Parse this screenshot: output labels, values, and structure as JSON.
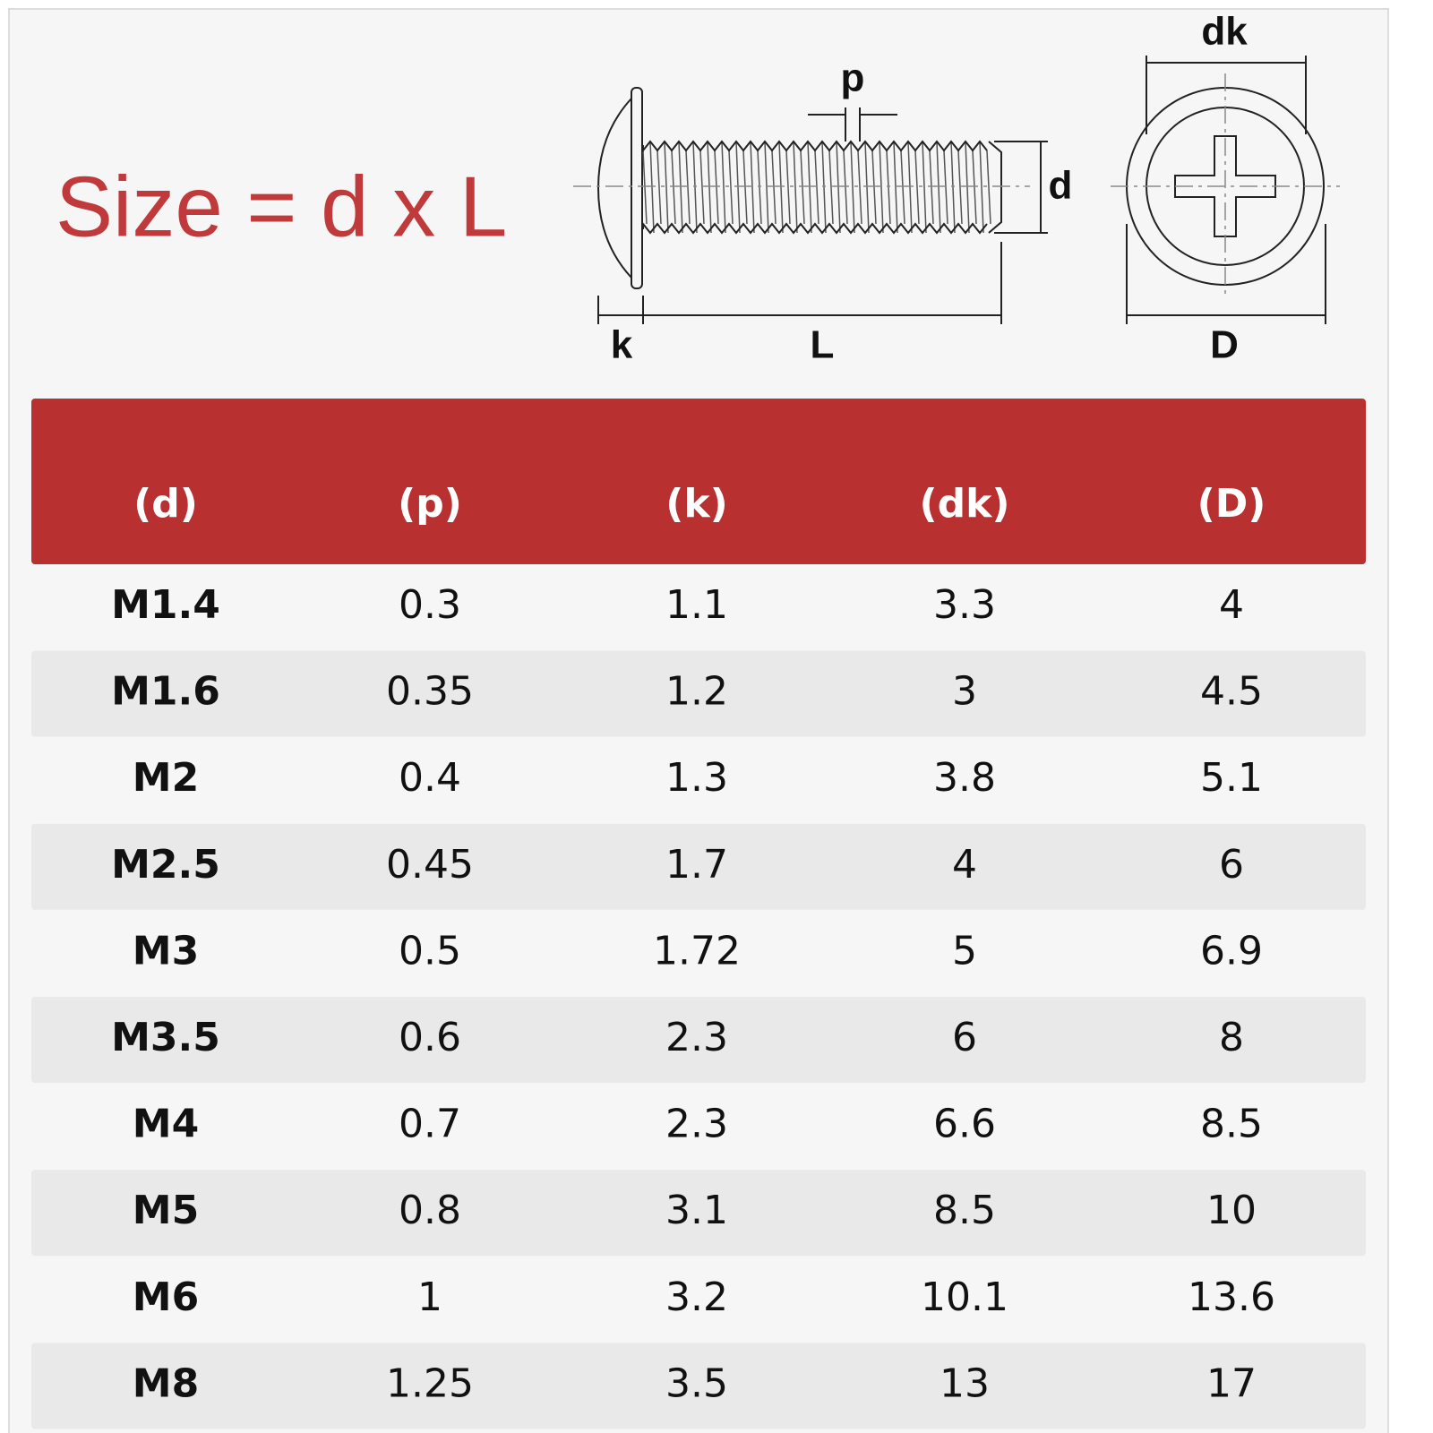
{
  "title": "Size = d x L",
  "diagram": {
    "labels": {
      "p": "p",
      "d": "d",
      "dk": "dk",
      "k": "k",
      "L": "L",
      "D": "D"
    }
  },
  "table": {
    "headers": [
      "(d)",
      "(p)",
      "(k)",
      "(dk)",
      "(D)"
    ],
    "rows": [
      [
        "M1.4",
        "0.3",
        "1.1",
        "3.3",
        "4"
      ],
      [
        "M1.6",
        "0.35",
        "1.2",
        "3",
        "4.5"
      ],
      [
        "M2",
        "0.4",
        "1.3",
        "3.8",
        "5.1"
      ],
      [
        "M2.5",
        "0.45",
        "1.7",
        "4",
        "6"
      ],
      [
        "M3",
        "0.5",
        "1.72",
        "5",
        "6.9"
      ],
      [
        "M3.5",
        "0.6",
        "2.3",
        "6",
        "8"
      ],
      [
        "M4",
        "0.7",
        "2.3",
        "6.6",
        "8.5"
      ],
      [
        "M5",
        "0.8",
        "3.1",
        "8.5",
        "10"
      ],
      [
        "M6",
        "1",
        "3.2",
        "10.1",
        "13.6"
      ],
      [
        "M8",
        "1.25",
        "3.5",
        "13",
        "17"
      ]
    ]
  }
}
